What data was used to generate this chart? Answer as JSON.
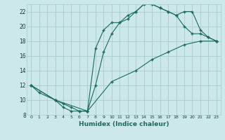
{
  "xlabel": "Humidex (Indice chaleur)",
  "xlim": [
    -0.5,
    23.5
  ],
  "ylim": [
    8,
    23
  ],
  "yticks": [
    8,
    10,
    12,
    14,
    16,
    18,
    20,
    22
  ],
  "xticks": [
    0,
    1,
    2,
    3,
    4,
    5,
    6,
    7,
    8,
    9,
    10,
    11,
    12,
    13,
    14,
    15,
    16,
    17,
    18,
    19,
    20,
    21,
    22,
    23
  ],
  "bg_color": "#cce8e8",
  "grid_color": "#aacccc",
  "line_color": "#1a6b5a",
  "line1_x": [
    0,
    1,
    3,
    4,
    5,
    6,
    7,
    8,
    9,
    10,
    11,
    12,
    13,
    14,
    15,
    16,
    17,
    18,
    19,
    20,
    21,
    22,
    23
  ],
  "line1_y": [
    12,
    11,
    10,
    9,
    8.5,
    8.5,
    8.5,
    17.0,
    19.5,
    20.5,
    20.5,
    21.5,
    22.0,
    23.0,
    23.0,
    22.5,
    22.0,
    21.5,
    20.0,
    19.0,
    19.0,
    18.5,
    18.0
  ],
  "line2_x": [
    0,
    3,
    4,
    5,
    6,
    7,
    8,
    9,
    10,
    11,
    12,
    13,
    14,
    15,
    16,
    17,
    18,
    19,
    20,
    21,
    22,
    23
  ],
  "line2_y": [
    12,
    10,
    9.5,
    9.0,
    8.5,
    8.5,
    12.0,
    16.5,
    19.0,
    20.5,
    21.0,
    22.0,
    23.0,
    23.0,
    22.5,
    22.0,
    21.5,
    22.0,
    22.0,
    19.5,
    18.5,
    18.0
  ],
  "line3_x": [
    0,
    3,
    7,
    10,
    13,
    15,
    17,
    19,
    21,
    23
  ],
  "line3_y": [
    12,
    10,
    8.5,
    12.5,
    14.0,
    15.5,
    16.5,
    17.5,
    18.0,
    18.0
  ]
}
